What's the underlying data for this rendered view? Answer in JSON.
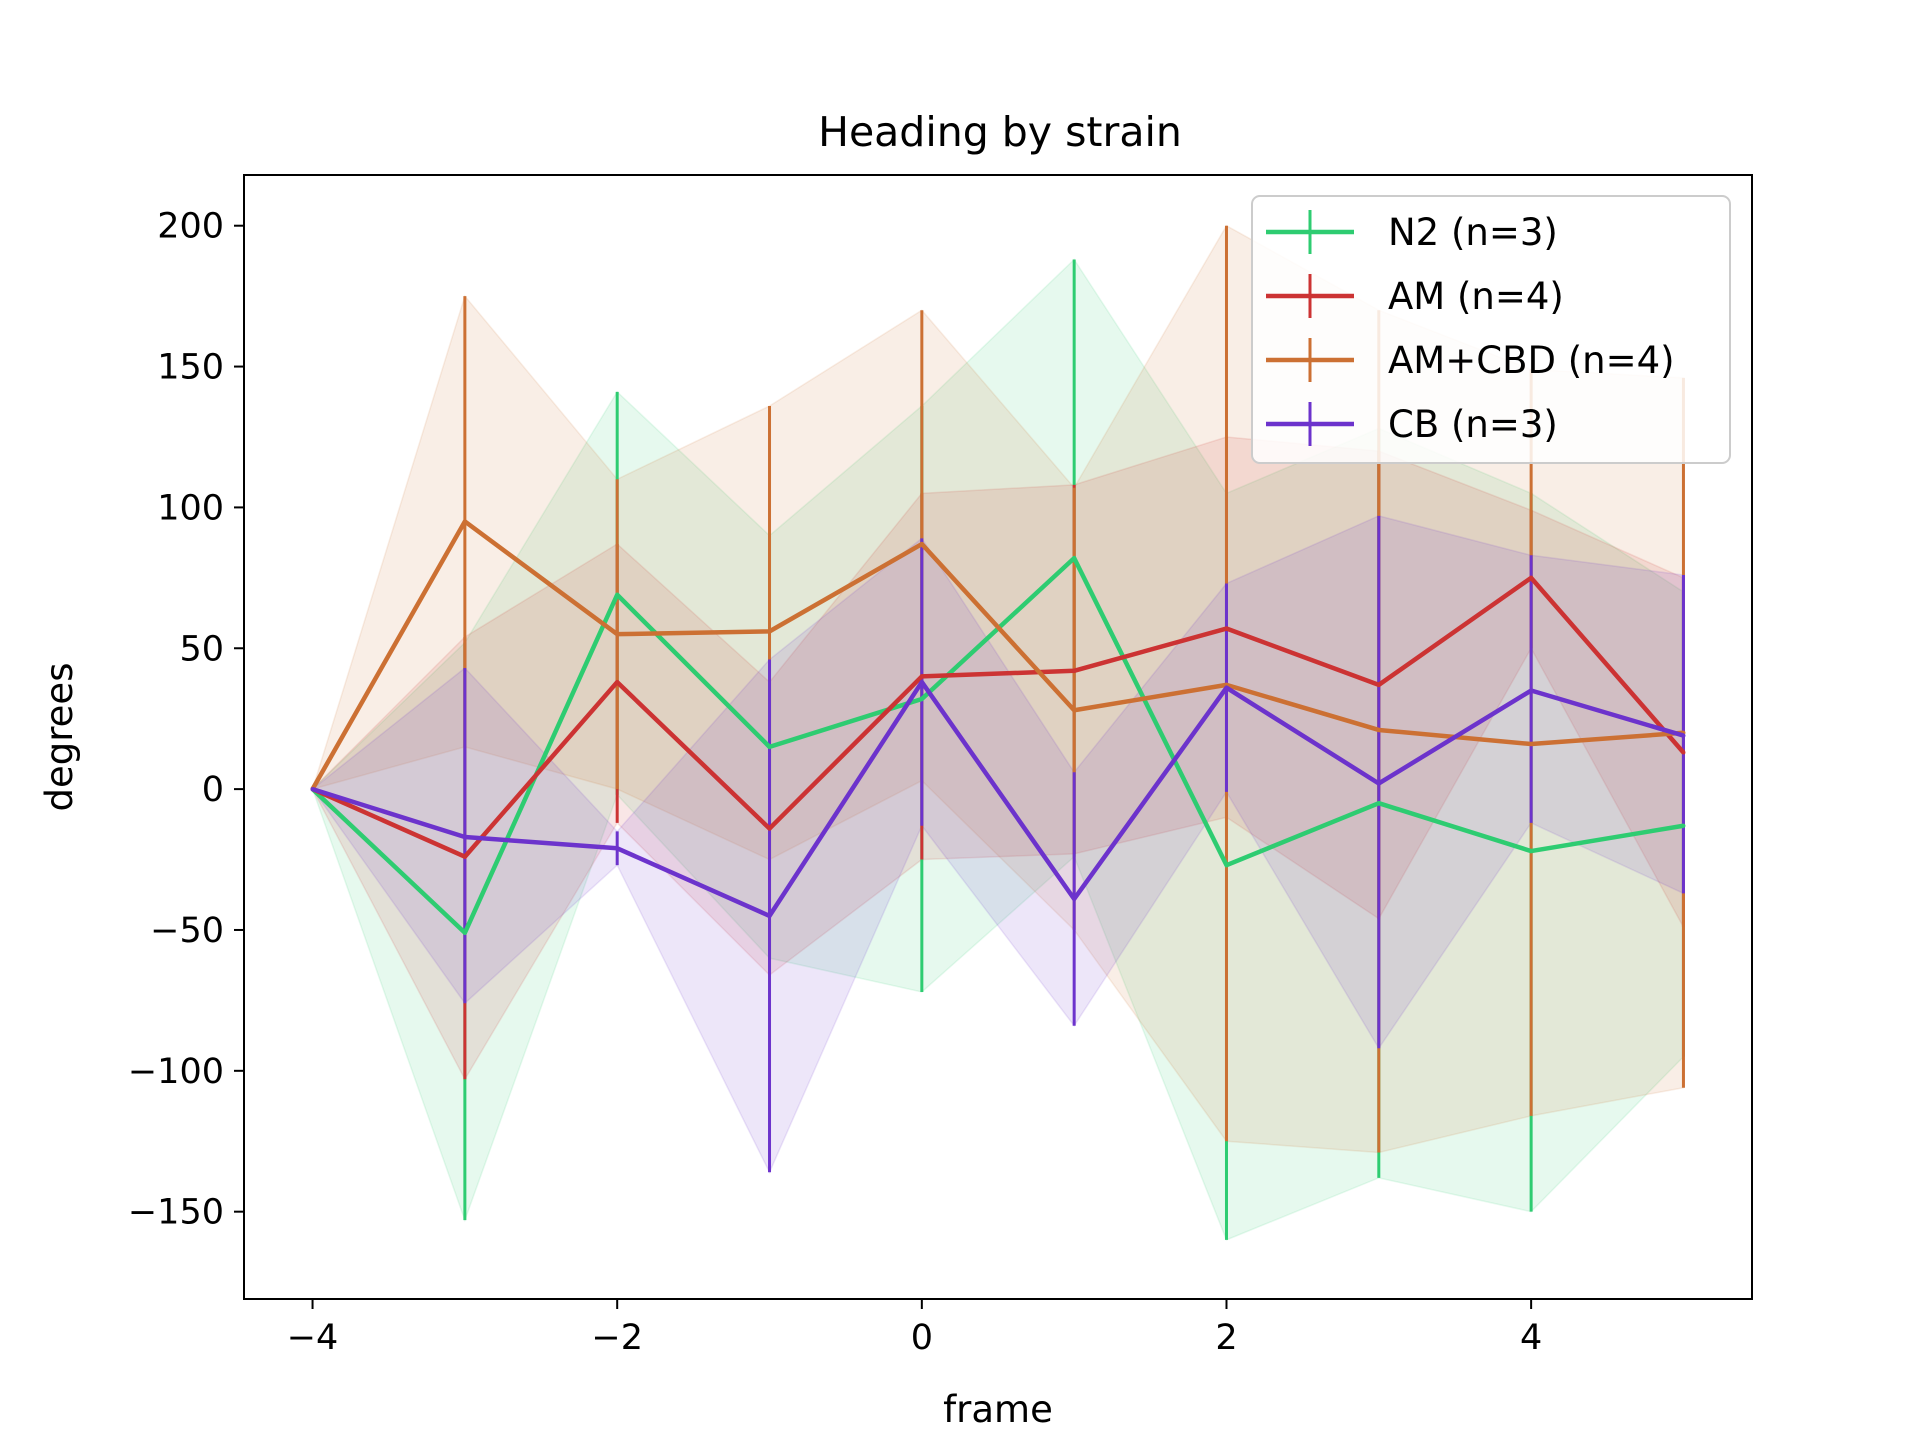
{
  "chart_data": {
    "type": "line",
    "title": "Heading by strain",
    "xlabel": "frame",
    "ylabel": "degrees",
    "xlim": [
      -4.45,
      5.45
    ],
    "ylim": [
      -181,
      218
    ],
    "xticks": [
      -4,
      -2,
      0,
      2,
      4
    ],
    "yticks": [
      200,
      150,
      100,
      50,
      0,
      -50,
      -100,
      -150
    ],
    "x": [
      -4,
      -3,
      -2,
      -1,
      0,
      1,
      2,
      3,
      4,
      5
    ],
    "legend_position": "top-right",
    "grid": false,
    "series": [
      {
        "name": "N2 (n=3)",
        "color": "#2ecc71",
        "values": [
          0,
          -51,
          69,
          15,
          32,
          82,
          -27,
          -5,
          -22,
          -13
        ],
        "lower": [
          0,
          -153,
          -2,
          -60,
          -72,
          -24,
          -160,
          -138,
          -150,
          -95
        ],
        "upper": [
          0,
          52,
          141,
          90,
          136,
          188,
          105,
          128,
          105,
          70
        ]
      },
      {
        "name": "AM (n=4)",
        "color": "#cc3333",
        "values": [
          0,
          -24,
          38,
          -14,
          40,
          42,
          57,
          37,
          75,
          13
        ],
        "lower": [
          0,
          -103,
          -12,
          -66,
          -25,
          -23,
          -10,
          -46,
          50,
          -49
        ],
        "upper": [
          0,
          54,
          87,
          38,
          105,
          108,
          125,
          120,
          99,
          75
        ]
      },
      {
        "name": "AM+CBD (n=4)",
        "color": "#cc7033",
        "values": [
          0,
          95,
          55,
          56,
          87,
          28,
          37,
          21,
          16,
          20
        ],
        "lower": [
          0,
          15,
          0,
          -25,
          3,
          -50,
          -125,
          -129,
          -116,
          -106
        ],
        "upper": [
          0,
          175,
          110,
          136,
          170,
          107,
          200,
          170,
          149,
          146
        ]
      },
      {
        "name": "CB (n=3)",
        "color": "#6c33cc",
        "values": [
          0,
          -17,
          -21,
          -45,
          38,
          -39,
          36,
          2,
          35,
          19
        ],
        "lower": [
          0,
          -76,
          -27,
          -136,
          -13,
          -84,
          -1,
          -92,
          -12,
          -37
        ],
        "upper": [
          0,
          43,
          -15,
          46,
          89,
          6,
          73,
          97,
          83,
          76
        ]
      }
    ]
  }
}
